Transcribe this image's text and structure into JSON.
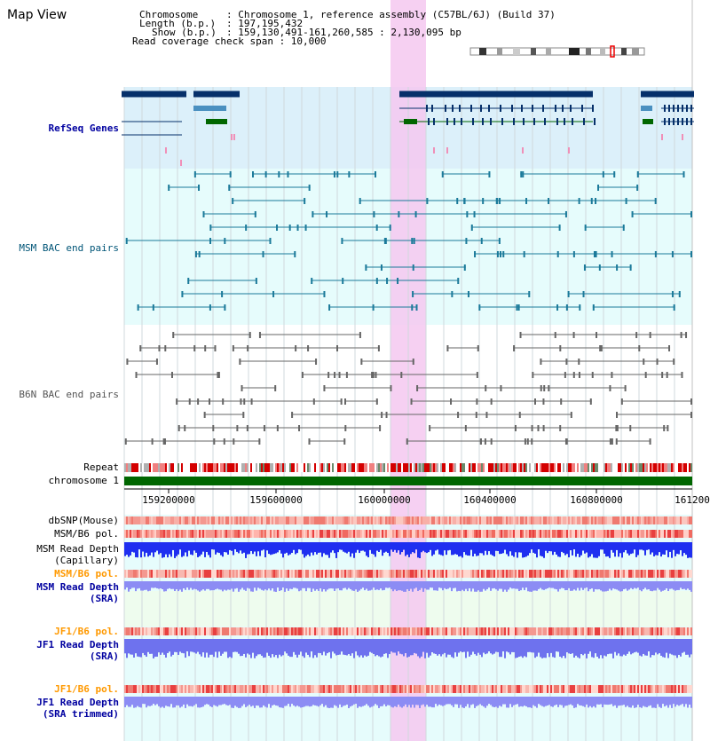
{
  "page_title": "Map View",
  "header": {
    "chromosome_key": "Chromosome",
    "chromosome_value": ": Chromosome 1, reference assembly (C57BL/6J) (Build 37)",
    "length_key": "Length (b.p.)",
    "length_value": ": 197,195,432",
    "show_key": "Show (b.p.)",
    "show_value": ": 159,130,491-161,260,585 : 2,130,095 bp",
    "coverage_line": "Read coverage check span : 10,000"
  },
  "tracks": {
    "refseq": "RefSeq Genes",
    "msm_bac": "MSM BAC end pairs",
    "b6n_bac": "B6N BAC end pairs",
    "repeat": "Repeat",
    "chromosome": "chromosome 1",
    "dbsnp": "dbSNP(Mouse)",
    "msm_b6_pol": "MSM/B6 pol.",
    "msm_read_cap_1": "MSM Read Depth",
    "msm_read_cap_2": "(Capillary)",
    "msm_b6_pol_2": "MSM/B6 pol.",
    "msm_read_sra_1": "MSM Read Depth",
    "msm_read_sra_2": "(SRA)",
    "jf1_b6_pol": "JF1/B6 pol.",
    "jf1_read_sra_1": "JF1 Read Depth",
    "jf1_read_sra_2": "(SRA)",
    "jf1_b6_pol_2": "JF1/B6 pol.",
    "jf1_trim_1": "JF1 Read Depth",
    "jf1_trim_2": "(SRA trimmed)"
  },
  "axis": {
    "ticks": [
      "159200000",
      "159600000",
      "160000000",
      "160400000",
      "160800000",
      "161200"
    ]
  },
  "colors": {
    "highlight": "#f5c8f0",
    "refseq_bg": "#dcf0fa",
    "lower_bg": "#e6fcfc",
    "chromosome_bar": "#006600",
    "gene_dark": "#06306a",
    "gene_light": "#4a90c0",
    "gene_green": "#006600"
  }
}
